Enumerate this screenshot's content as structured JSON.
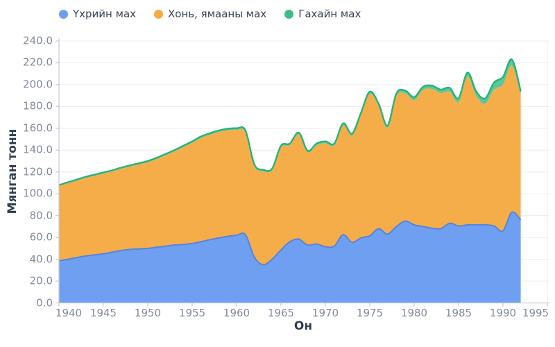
{
  "legend": [
    {
      "label": "Үхрийн мах",
      "color": "#6d9eeb"
    },
    {
      "label": "Хонь, ямааны мах",
      "color": "#f5ab40"
    },
    {
      "label": "Гахайн мах",
      "color": "#3dbd85"
    }
  ],
  "y_axis": {
    "title": "Мянган тонн",
    "min": 0,
    "max": 240,
    "step": 20
  },
  "x_axis": {
    "title": "Он",
    "min": 1940,
    "max": 1995,
    "ticks": [
      1940,
      1945,
      1950,
      1955,
      1960,
      1965,
      1970,
      1975,
      1980,
      1985,
      1990,
      1995
    ]
  },
  "chart_data": {
    "type": "area",
    "stacked": true,
    "title": "",
    "xlabel": "Он",
    "ylabel": "Мянган тонн",
    "xlim": [
      1940,
      1995
    ],
    "ylim": [
      0,
      240
    ],
    "grid": "horizontal",
    "legend_position": "top",
    "x": [
      1940,
      1941,
      1942,
      1943,
      1944,
      1945,
      1946,
      1947,
      1948,
      1949,
      1950,
      1951,
      1952,
      1953,
      1954,
      1955,
      1956,
      1957,
      1958,
      1959,
      1960,
      1961,
      1962,
      1963,
      1964,
      1965,
      1966,
      1967,
      1968,
      1969,
      1970,
      1971,
      1972,
      1973,
      1974,
      1975,
      1976,
      1977,
      1978,
      1979,
      1980,
      1981,
      1982,
      1983,
      1984,
      1985,
      1986,
      1987,
      1988,
      1989,
      1990,
      1991,
      1992
    ],
    "series": [
      {
        "name": "Үхрийн мах",
        "fill": "#6f9ff0",
        "stroke": "#5584dd",
        "values": [
          38.5,
          40,
          41.5,
          43,
          44,
          45,
          46.5,
          48,
          49,
          49.5,
          50,
          51,
          52,
          53,
          53.5,
          54.5,
          56,
          58,
          59.5,
          61,
          62,
          62.5,
          42,
          35,
          40,
          48.5,
          56,
          58.5,
          53,
          54,
          51.5,
          52,
          62.5,
          55.5,
          59.5,
          61.5,
          68,
          63,
          70,
          75,
          71.5,
          70,
          68.5,
          68,
          73,
          70.5,
          71.5,
          71.5,
          71.5,
          70.5,
          66,
          83,
          76
        ]
      },
      {
        "name": "Хонь, ямааны мах",
        "fill": "#f5ad49",
        "stroke": "#f5ad49",
        "values": [
          68.7,
          69.7,
          70.6,
          71.6,
          72.5,
          73.5,
          74,
          75,
          75.9,
          77.4,
          78.9,
          80.8,
          83.3,
          85.8,
          89.2,
          92.2,
          95.2,
          96.1,
          97.1,
          97.1,
          96.5,
          94,
          83.6,
          85.7,
          81.7,
          94.1,
          88.5,
          96,
          85,
          90.4,
          94.9,
          92.3,
          100.2,
          97.7,
          112.6,
          130,
          112.3,
          97.3,
          119.6,
          117,
          114.4,
          125.2,
          127.5,
          124.3,
          120.6,
          113.5,
          135.7,
          118,
          111,
          125,
          134,
          134.5,
          114.5
        ]
      },
      {
        "name": "Гахайн мах",
        "fill": "#5bc79b",
        "stroke": "#27b377",
        "values": [
          0.8,
          0.8,
          0.9,
          0.9,
          1,
          1,
          1,
          1,
          1.1,
          1.1,
          1.1,
          1.2,
          1.2,
          1.2,
          1.3,
          1.3,
          1.3,
          1.4,
          1.4,
          1.4,
          1.5,
          1.5,
          1.4,
          1.3,
          1.3,
          1.4,
          1.5,
          1.5,
          1.5,
          1.6,
          1.6,
          1.7,
          1.8,
          1.8,
          1.9,
          2,
          2.2,
          2.2,
          2.4,
          2.5,
          2.6,
          2.8,
          3,
          3.2,
          3.4,
          3.5,
          3.8,
          4,
          5,
          6.5,
          7,
          5.5,
          3.5
        ]
      }
    ]
  }
}
